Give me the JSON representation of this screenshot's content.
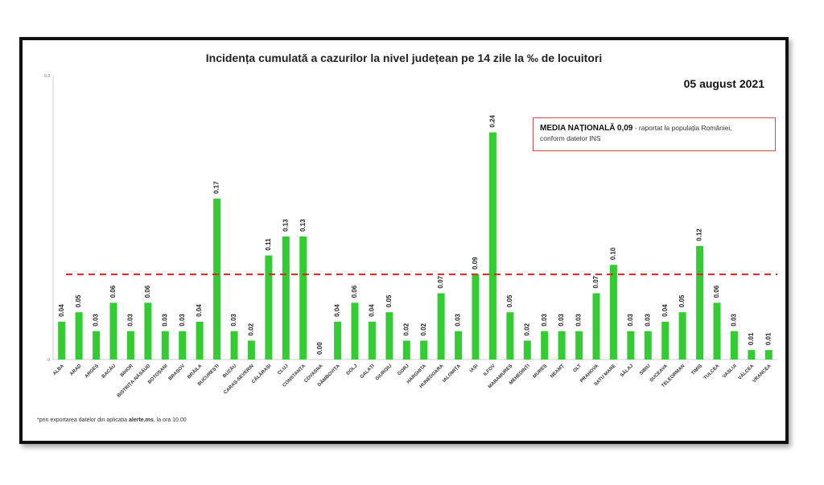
{
  "title": "Incidența cumulată a cazurilor la nivel județean pe 14 zile   la ‰ de locuitori",
  "date": "05 august 2021",
  "national_box": {
    "label": "MEDIA NAȚIONALĂ",
    "value": "0,09",
    "note1": "- raportat la populația României,",
    "note2": "conform datelor INS"
  },
  "footnote": {
    "prefix": "*prin exportarea datelor din aplicația ",
    "bold": "alerte.ms",
    "suffix": ", la ora 10.00"
  },
  "colors": {
    "bar": "#33cc33",
    "mean_line": "#dd2222",
    "box_border": "#d05050"
  },
  "chart_data": {
    "type": "bar",
    "title": "Incidența cumulată a cazurilor la nivel județean pe 14 zile   la ‰ de locuitori",
    "ylim": [
      0,
      0.3
    ],
    "y_ticks": [
      "0,3",
      "0"
    ],
    "reference_line": {
      "value": 0.09,
      "style": "dashed"
    },
    "categories": [
      "ALBA",
      "ARAD",
      "ARGEȘ",
      "BACĂU",
      "BIHOR",
      "BISTRIȚA-NĂSĂUD",
      "BOTOȘANI",
      "BRAȘOV",
      "BRĂILA",
      "BUCUREȘTI",
      "BUZĂU",
      "CARAȘ-SEVERIN",
      "CĂLĂRAȘI",
      "CLUJ",
      "CONSTANȚA",
      "COVASNA",
      "DÂMBOVIȚA",
      "DOLJ",
      "GALAȚI",
      "GIURGIU",
      "GORJ",
      "HARGHITA",
      "HUNEDOARA",
      "IALOMIȚA",
      "IAȘI",
      "ILFOV",
      "MARAMUREȘ",
      "MEHEDINȚI",
      "MUREȘ",
      "NEAMȚ",
      "OLT",
      "PRAHOVA",
      "SATU MARE",
      "SĂLAJ",
      "SIBIU",
      "SUCEAVA",
      "TELEORMAN",
      "TIMIȘ",
      "TULCEA",
      "VASLUI",
      "VÂLCEA",
      "VRANCEA"
    ],
    "values": [
      0.04,
      0.05,
      0.03,
      0.06,
      0.03,
      0.06,
      0.03,
      0.03,
      0.04,
      0.17,
      0.03,
      0.02,
      0.11,
      0.13,
      0.13,
      0.0,
      0.04,
      0.06,
      0.04,
      0.05,
      0.02,
      0.02,
      0.07,
      0.03,
      0.09,
      0.24,
      0.05,
      0.02,
      0.03,
      0.03,
      0.03,
      0.07,
      0.1,
      0.03,
      0.03,
      0.04,
      0.05,
      0.12,
      0.06,
      0.03,
      0.01,
      0.01
    ],
    "labels": [
      "0.04",
      "0.05",
      "0.03",
      "0.06",
      "0.03",
      "0.06",
      "0.03",
      "0.03",
      "0.04",
      "0.17",
      "0.03",
      "0.02",
      "0.11",
      "0.13",
      "0.13",
      "0.00",
      "0.04",
      "0.06",
      "0.04",
      "0.05",
      "0.02",
      "0.02",
      "0.07",
      "0.03",
      "0.09",
      "0.24",
      "0.05",
      "0.02",
      "0.03",
      "0.03",
      "0.03",
      "0.07",
      "0.10",
      "0.03",
      "0.03",
      "0.04",
      "0.05",
      "0.12",
      "0.06",
      "0.03",
      "0.01",
      "0.01"
    ]
  }
}
